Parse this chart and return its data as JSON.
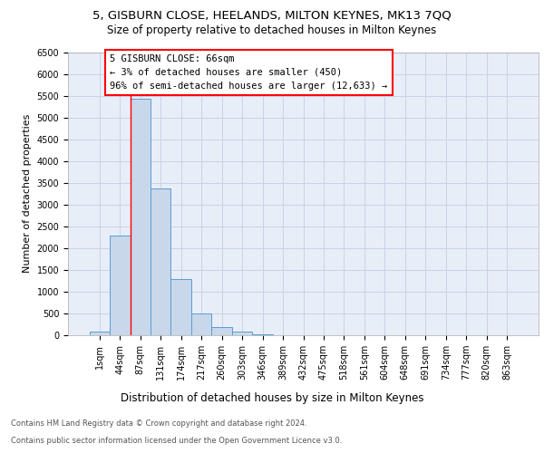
{
  "title1": "5, GISBURN CLOSE, HEELANDS, MILTON KEYNES, MK13 7QQ",
  "title2": "Size of property relative to detached houses in Milton Keynes",
  "xlabel": "Distribution of detached houses by size in Milton Keynes",
  "ylabel": "Number of detached properties",
  "categories": [
    "1sqm",
    "44sqm",
    "87sqm",
    "131sqm",
    "174sqm",
    "217sqm",
    "260sqm",
    "303sqm",
    "346sqm",
    "389sqm",
    "432sqm",
    "475sqm",
    "518sqm",
    "561sqm",
    "604sqm",
    "648sqm",
    "691sqm",
    "734sqm",
    "777sqm",
    "820sqm",
    "863sqm"
  ],
  "values": [
    75,
    2280,
    5430,
    3380,
    1300,
    490,
    195,
    80,
    30,
    5,
    0,
    0,
    0,
    0,
    0,
    0,
    0,
    0,
    0,
    0,
    0
  ],
  "bar_color": "#c8d8ea",
  "bar_edge_color": "#5b9bd5",
  "annotation_box_text": "5 GISBURN CLOSE: 66sqm\n← 3% of detached houses are smaller (450)\n96% of semi-detached houses are larger (12,633) →",
  "ylim": [
    0,
    6500
  ],
  "yticks": [
    0,
    500,
    1000,
    1500,
    2000,
    2500,
    3000,
    3500,
    4000,
    4500,
    5000,
    5500,
    6000,
    6500
  ],
  "grid_color": "#c8d4e4",
  "bg_color": "#e8eef8",
  "footer1": "Contains HM Land Registry data © Crown copyright and database right 2024.",
  "footer2": "Contains public sector information licensed under the Open Government Licence v3.0.",
  "red_line_x": 1.5,
  "title1_fontsize": 9.5,
  "title2_fontsize": 8.5,
  "xlabel_fontsize": 8.5,
  "ylabel_fontsize": 8,
  "tick_fontsize": 7,
  "annot_fontsize": 7.5,
  "footer_fontsize": 6
}
